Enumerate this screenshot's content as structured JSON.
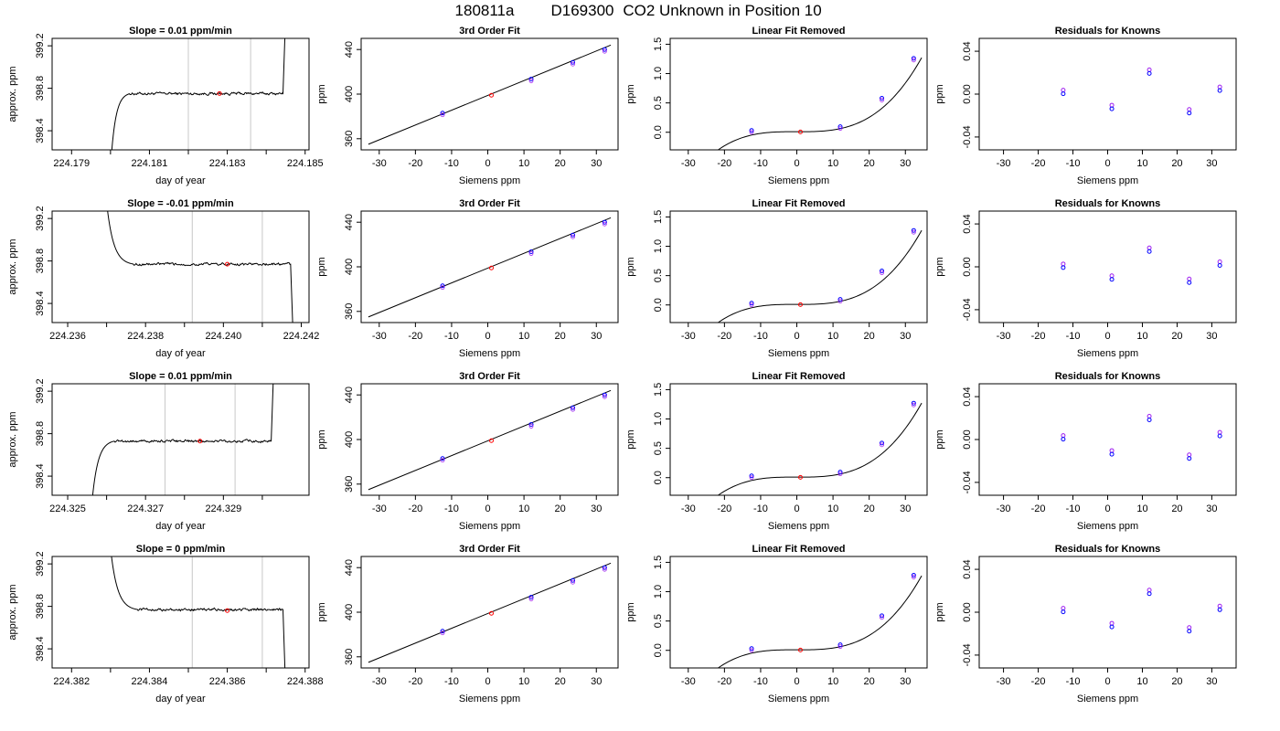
{
  "title_parts": [
    "180811a",
    "D169300",
    "CO2 Unknown in Position  10"
  ],
  "colors": {
    "trace": "#000000",
    "known": "#0000ff",
    "unknown": "#ff0000",
    "residual": "#a020f0",
    "window": "#c8c8c8"
  },
  "chart_data": [
    {
      "type": "line",
      "row": 0,
      "col": 0,
      "title": "Slope =  0.01  ppm/min",
      "xlabel": "day of year",
      "ylabel": "approx. ppm",
      "xlim": [
        224.1785,
        224.1851
      ],
      "ylim": [
        398.22,
        399.27
      ],
      "xticks": [
        224.179,
        224.18,
        224.181,
        224.182,
        224.183,
        224.184,
        224.185
      ],
      "xtick_labels": [
        "224.179",
        "",
        "224.181",
        "",
        "224.183",
        "",
        "224.185"
      ],
      "yticks": [
        398.4,
        398.8,
        399.2
      ],
      "ytick_labels": [
        "398.4",
        "398.8",
        "399.2"
      ],
      "trace": {
        "x0": 224.18,
        "x1": 224.1845,
        "y_start": 398.05,
        "ramp_end": 224.1805,
        "plateau": 398.75,
        "y_end": 399.5,
        "wobble": 0.012
      },
      "window": [
        224.182,
        224.1836
      ],
      "marker": {
        "x": 224.1828,
        "y": 398.75
      }
    },
    {
      "type": "scatter",
      "row": 0,
      "col": 1,
      "title": "3rd Order Fit",
      "xlabel": "Siemens ppm",
      "ylabel": "ppm",
      "xlim": [
        -35,
        36
      ],
      "ylim": [
        350,
        450
      ],
      "xticks": [
        -30,
        -20,
        -10,
        0,
        10,
        20,
        30
      ],
      "yticks": [
        360,
        400,
        440
      ],
      "ytick_labels": [
        "360",
        "400",
        "440"
      ],
      "line": {
        "x": [
          -33,
          34
        ],
        "y": [
          355,
          444
        ]
      },
      "knowns": [
        [
          -12.5,
          383
        ],
        [
          12.0,
          413.5
        ],
        [
          23.5,
          428.5
        ],
        [
          32.3,
          440
        ]
      ],
      "unknown": [
        1.0,
        399
      ]
    },
    {
      "type": "scatter",
      "row": 0,
      "col": 2,
      "title": "Linear Fit Removed",
      "xlabel": "Siemens ppm",
      "ylabel": "ppm",
      "xlim": [
        -35,
        36
      ],
      "ylim": [
        -0.3,
        1.6
      ],
      "xticks": [
        -30,
        -20,
        -10,
        0,
        10,
        20,
        30
      ],
      "yticks": [
        0,
        0.5,
        1,
        1.5
      ],
      "ytick_labels": [
        "0.0",
        "0.5",
        "1.0",
        "1.5"
      ],
      "curve": {
        "x_range": [
          -33,
          34.5
        ],
        "a": 0.0093,
        "b": -0.0001,
        "c": 7e-06,
        "d": 3.06e-05
      },
      "knowns": [
        [
          -12.5,
          0.03
        ],
        [
          12.0,
          0.095
        ],
        [
          23.5,
          0.58
        ],
        [
          32.3,
          1.26
        ]
      ],
      "unknown": [
        1.0,
        0.005
      ]
    },
    {
      "type": "scatter",
      "row": 0,
      "col": 3,
      "title": "Residuals for Knowns",
      "xlabel": "Siemens ppm",
      "ylabel": "ppm",
      "xlim": [
        -37,
        37
      ],
      "ylim": [
        -0.052,
        0.052
      ],
      "xticks": [
        -30,
        -20,
        -10,
        0,
        10,
        20,
        30
      ],
      "yticks": [
        -0.04,
        0,
        0.04
      ],
      "ytick_labels": [
        "-0.04",
        "0.00",
        "0.04"
      ],
      "points": [
        [
          -12.8,
          0.002
        ],
        [
          1.2,
          -0.012
        ],
        [
          12.0,
          0.021
        ],
        [
          23.5,
          -0.016
        ],
        [
          32.3,
          0.005
        ]
      ]
    },
    {
      "type": "line",
      "row": 1,
      "col": 0,
      "title": "Slope =  -0.01  ppm/min",
      "xlabel": "day of year",
      "ylabel": "approx. ppm",
      "xlim": [
        224.2356,
        224.2422
      ],
      "ylim": [
        398.22,
        399.27
      ],
      "xticks": [
        224.236,
        224.237,
        224.238,
        224.239,
        224.24,
        224.241,
        224.242
      ],
      "xtick_labels": [
        "224.236",
        "",
        "224.238",
        "",
        "224.240",
        "",
        "224.242"
      ],
      "yticks": [
        398.4,
        398.8,
        399.2
      ],
      "ytick_labels": [
        "398.4",
        "398.8",
        "399.2"
      ],
      "trace": {
        "x0": 224.237,
        "x1": 224.2418,
        "y_start": 399.35,
        "ramp_end": 224.2377,
        "plateau": 398.77,
        "y_end": 398.0,
        "wobble": 0.012
      },
      "window": [
        224.2392,
        224.241
      ],
      "marker": {
        "x": 224.2401,
        "y": 398.77
      }
    },
    {
      "type": "scatter",
      "row": 1,
      "col": 1,
      "title": "3rd Order Fit",
      "xlabel": "Siemens ppm",
      "ylabel": "ppm",
      "xlim": [
        -35,
        36
      ],
      "ylim": [
        350,
        450
      ],
      "xticks": [
        -30,
        -20,
        -10,
        0,
        10,
        20,
        30
      ],
      "yticks": [
        360,
        400,
        440
      ],
      "ytick_labels": [
        "360",
        "400",
        "440"
      ],
      "line": {
        "x": [
          -33,
          34
        ],
        "y": [
          355,
          444
        ]
      },
      "knowns": [
        [
          -12.5,
          383
        ],
        [
          12.0,
          413.5
        ],
        [
          23.5,
          428.5
        ],
        [
          32.3,
          440
        ]
      ],
      "unknown": [
        1.0,
        399
      ]
    },
    {
      "type": "scatter",
      "row": 1,
      "col": 2,
      "title": "Linear Fit Removed",
      "xlabel": "Siemens ppm",
      "ylabel": "ppm",
      "xlim": [
        -35,
        36
      ],
      "ylim": [
        -0.3,
        1.6
      ],
      "xticks": [
        -30,
        -20,
        -10,
        0,
        10,
        20,
        30
      ],
      "yticks": [
        0,
        0.5,
        1,
        1.5
      ],
      "ytick_labels": [
        "0.0",
        "0.5",
        "1.0",
        "1.5"
      ],
      "curve": {
        "x_range": [
          -33,
          34.5
        ],
        "a": 0.0093,
        "b": -0.0001,
        "c": 7e-06,
        "d": 3.06e-05
      },
      "knowns": [
        [
          -12.5,
          0.03
        ],
        [
          12.0,
          0.095
        ],
        [
          23.5,
          0.58
        ],
        [
          32.3,
          1.27
        ]
      ],
      "unknown": [
        1.0,
        0.005
      ]
    },
    {
      "type": "scatter",
      "row": 1,
      "col": 3,
      "title": "Residuals for Knowns",
      "xlabel": "Siemens ppm",
      "ylabel": "ppm",
      "xlim": [
        -37,
        37
      ],
      "ylim": [
        -0.052,
        0.052
      ],
      "xticks": [
        -30,
        -20,
        -10,
        0,
        10,
        20,
        30
      ],
      "yticks": [
        -0.04,
        0,
        0.04
      ],
      "ytick_labels": [
        "-0.04",
        "0.00",
        "0.04"
      ],
      "points": [
        [
          -12.8,
          0.001
        ],
        [
          1.2,
          -0.01
        ],
        [
          12.0,
          0.016
        ],
        [
          23.5,
          -0.013
        ],
        [
          32.3,
          0.003
        ]
      ]
    },
    {
      "type": "line",
      "row": 2,
      "col": 0,
      "title": "Slope =  0.01  ppm/min",
      "xlabel": "day of year",
      "ylabel": "approx. ppm",
      "xlim": [
        224.3246,
        224.3312
      ],
      "ylim": [
        398.22,
        399.27
      ],
      "xticks": [
        224.325,
        224.326,
        224.327,
        224.328,
        224.329,
        224.33
      ],
      "xtick_labels": [
        "224.325",
        "",
        "224.327",
        "",
        "224.329",
        ""
      ],
      "yticks": [
        398.4,
        398.8,
        399.2
      ],
      "ytick_labels": [
        "398.4",
        "398.8",
        "399.2"
      ],
      "trace": {
        "x0": 224.3256,
        "x1": 224.3303,
        "y_start": 398.05,
        "ramp_end": 224.3262,
        "plateau": 398.73,
        "y_end": 399.5,
        "wobble": 0.012
      },
      "window": [
        224.3275,
        224.3293
      ],
      "marker": {
        "x": 224.3284,
        "y": 398.73
      }
    },
    {
      "type": "scatter",
      "row": 2,
      "col": 1,
      "title": "3rd Order Fit",
      "xlabel": "Siemens ppm",
      "ylabel": "ppm",
      "xlim": [
        -35,
        36
      ],
      "ylim": [
        350,
        450
      ],
      "xticks": [
        -30,
        -20,
        -10,
        0,
        10,
        20,
        30
      ],
      "yticks": [
        360,
        400,
        440
      ],
      "ytick_labels": [
        "360",
        "400",
        "440"
      ],
      "line": {
        "x": [
          -33,
          34
        ],
        "y": [
          355,
          444
        ]
      },
      "knowns": [
        [
          -12.5,
          383
        ],
        [
          12.0,
          413.5
        ],
        [
          23.5,
          428.5
        ],
        [
          32.3,
          440
        ]
      ],
      "unknown": [
        1.0,
        399
      ]
    },
    {
      "type": "scatter",
      "row": 2,
      "col": 2,
      "title": "Linear Fit Removed",
      "xlabel": "Siemens ppm",
      "ylabel": "ppm",
      "xlim": [
        -35,
        36
      ],
      "ylim": [
        -0.3,
        1.6
      ],
      "xticks": [
        -30,
        -20,
        -10,
        0,
        10,
        20,
        30
      ],
      "yticks": [
        0,
        0.5,
        1,
        1.5
      ],
      "ytick_labels": [
        "0.0",
        "0.5",
        "1.0",
        "1.5"
      ],
      "curve": {
        "x_range": [
          -33,
          34.5
        ],
        "a": 0.0093,
        "b": -0.0001,
        "c": 7e-06,
        "d": 3.06e-05
      },
      "knowns": [
        [
          -12.5,
          0.03
        ],
        [
          12.0,
          0.095
        ],
        [
          23.5,
          0.59
        ],
        [
          32.3,
          1.27
        ]
      ],
      "unknown": [
        1.0,
        0.005
      ]
    },
    {
      "type": "scatter",
      "row": 2,
      "col": 3,
      "title": "Residuals for Knowns",
      "xlabel": "Siemens ppm",
      "ylabel": "ppm",
      "xlim": [
        -37,
        37
      ],
      "ylim": [
        -0.052,
        0.052
      ],
      "xticks": [
        -30,
        -20,
        -10,
        0,
        10,
        20,
        30
      ],
      "yticks": [
        -0.04,
        0,
        0.04
      ],
      "ytick_labels": [
        "-0.04",
        "0.00",
        "0.04"
      ],
      "points": [
        [
          -12.8,
          0.002
        ],
        [
          1.2,
          -0.012
        ],
        [
          12.0,
          0.02
        ],
        [
          23.5,
          -0.016
        ],
        [
          32.3,
          0.005
        ]
      ]
    },
    {
      "type": "line",
      "row": 3,
      "col": 0,
      "title": "Slope =  0  ppm/min",
      "xlabel": "day of year",
      "ylabel": "approx. ppm",
      "xlim": [
        224.3815,
        224.3881
      ],
      "ylim": [
        398.22,
        399.27
      ],
      "xticks": [
        224.382,
        224.383,
        224.384,
        224.385,
        224.386,
        224.387,
        224.388
      ],
      "xtick_labels": [
        "224.382",
        "",
        "224.384",
        "",
        "224.386",
        "",
        "224.388"
      ],
      "yticks": [
        398.4,
        398.8,
        399.2
      ],
      "ytick_labels": [
        "398.4",
        "398.8",
        "399.2"
      ],
      "trace": {
        "x0": 224.383,
        "x1": 224.3875,
        "y_start": 399.35,
        "ramp_end": 224.3837,
        "plateau": 398.77,
        "y_end": 398.0,
        "wobble": 0.012
      },
      "window": [
        224.3851,
        224.3869
      ],
      "marker": {
        "x": 224.386,
        "y": 398.76
      }
    },
    {
      "type": "scatter",
      "row": 3,
      "col": 1,
      "title": "3rd Order Fit",
      "xlabel": "Siemens ppm",
      "ylabel": "ppm",
      "xlim": [
        -35,
        36
      ],
      "ylim": [
        350,
        450
      ],
      "xticks": [
        -30,
        -20,
        -10,
        0,
        10,
        20,
        30
      ],
      "yticks": [
        360,
        400,
        440
      ],
      "ytick_labels": [
        "360",
        "400",
        "440"
      ],
      "line": {
        "x": [
          -33,
          34
        ],
        "y": [
          355,
          444
        ]
      },
      "knowns": [
        [
          -12.5,
          383
        ],
        [
          12.0,
          413.5
        ],
        [
          23.5,
          428.5
        ],
        [
          32.3,
          440
        ]
      ],
      "unknown": [
        1.0,
        399
      ]
    },
    {
      "type": "scatter",
      "row": 3,
      "col": 2,
      "title": "Linear Fit Removed",
      "xlabel": "Siemens ppm",
      "ylabel": "ppm",
      "xlim": [
        -35,
        36
      ],
      "ylim": [
        -0.3,
        1.6
      ],
      "xticks": [
        -30,
        -20,
        -10,
        0,
        10,
        20,
        30
      ],
      "yticks": [
        0,
        0.5,
        1,
        1.5
      ],
      "ytick_labels": [
        "0.0",
        "0.5",
        "1.0",
        "1.5"
      ],
      "curve": {
        "x_range": [
          -33,
          34.5
        ],
        "a": 0.0093,
        "b": -0.0001,
        "c": 7e-06,
        "d": 3.06e-05
      },
      "knowns": [
        [
          -12.5,
          0.03
        ],
        [
          12.0,
          0.095
        ],
        [
          23.5,
          0.59
        ],
        [
          32.3,
          1.28
        ]
      ],
      "unknown": [
        1.0,
        0.005
      ]
    },
    {
      "type": "scatter",
      "row": 3,
      "col": 3,
      "title": "Residuals for Knowns",
      "xlabel": "Siemens ppm",
      "ylabel": "ppm",
      "xlim": [
        -37,
        37
      ],
      "ylim": [
        -0.052,
        0.052
      ],
      "xticks": [
        -30,
        -20,
        -10,
        0,
        10,
        20,
        30
      ],
      "yticks": [
        -0.04,
        0,
        0.04
      ],
      "ytick_labels": [
        "-0.04",
        "0.00",
        "0.04"
      ],
      "points": [
        [
          -12.8,
          0.002
        ],
        [
          1.2,
          -0.012
        ],
        [
          12.0,
          0.019
        ],
        [
          23.5,
          -0.016
        ],
        [
          32.3,
          0.004
        ]
      ]
    }
  ]
}
